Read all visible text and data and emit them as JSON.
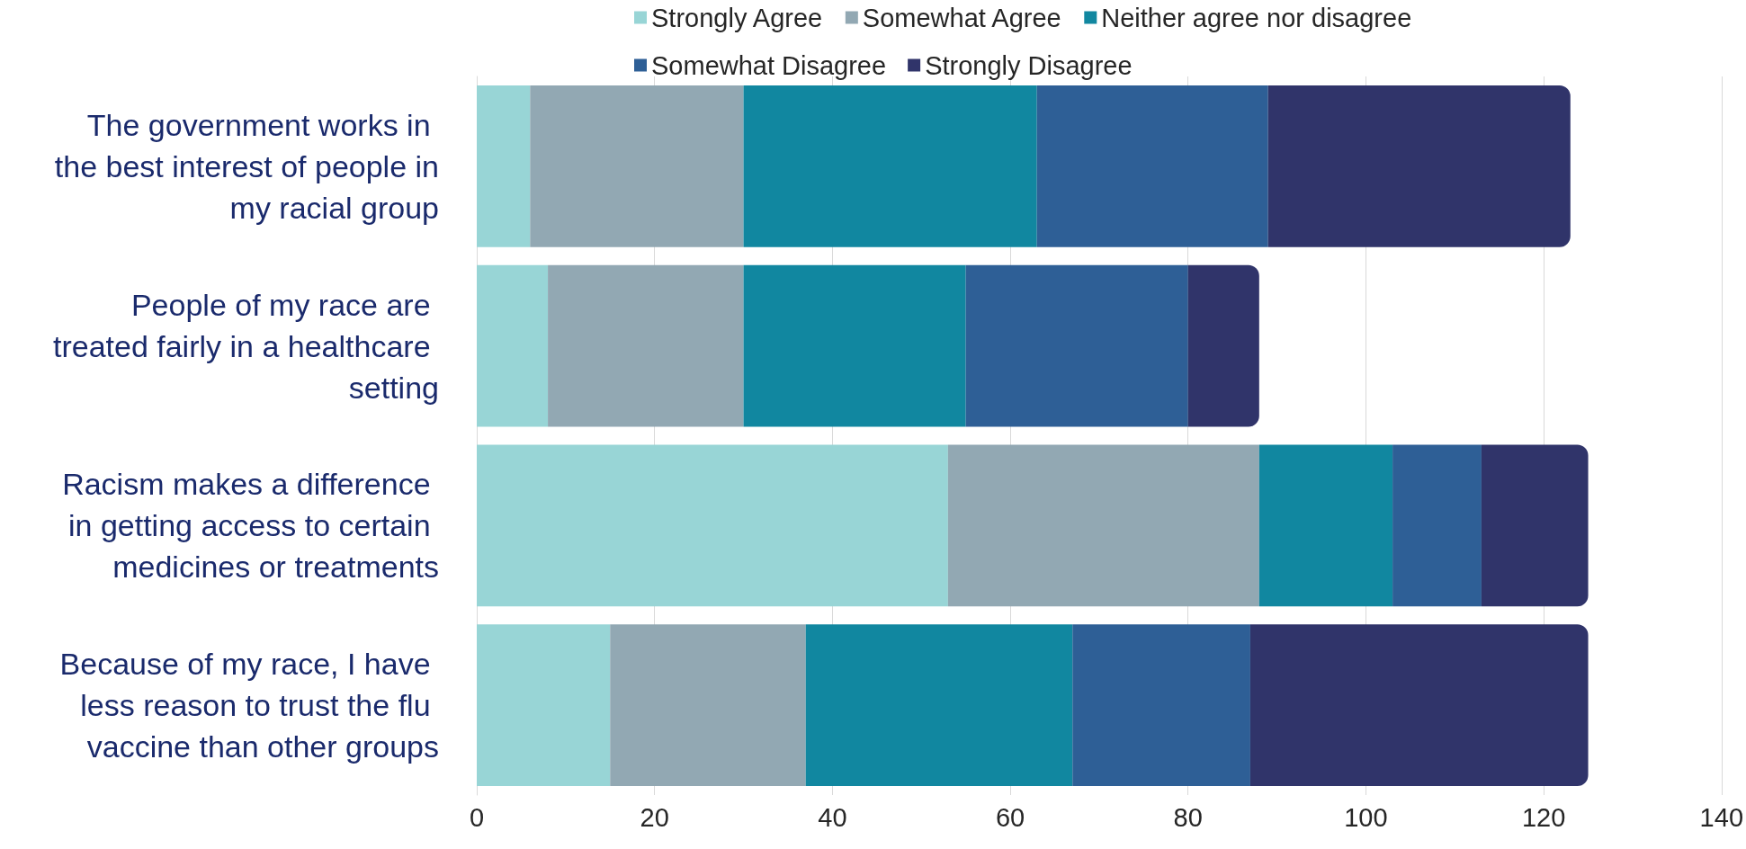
{
  "chart_data": {
    "type": "bar",
    "orientation": "horizontal",
    "stacked": true,
    "categories": [
      "The government works in the best interest of people in my racial group",
      "People of my race are treated fairly in a healthcare setting",
      "Racism makes a difference in getting access to certain medicines or treatments",
      "Because of my race, I have less reason to trust the flu vaccine than other groups"
    ],
    "series": [
      {
        "name": "Strongly Agree",
        "color": "#98d5d6",
        "values": [
          6,
          8,
          53,
          15
        ]
      },
      {
        "name": "Somewhat Agree",
        "color": "#92a8b3",
        "values": [
          24,
          22,
          35,
          22
        ]
      },
      {
        "name": "Neither agree nor disagree",
        "color": "#1187a0",
        "values": [
          33,
          25,
          15,
          30
        ]
      },
      {
        "name": "Somewhat Disagree",
        "color": "#2e5f96",
        "values": [
          26,
          25,
          10,
          20
        ]
      },
      {
        "name": "Strongly Disagree",
        "color": "#30346a",
        "values": [
          34,
          8,
          12,
          38
        ]
      }
    ],
    "xlim": [
      0,
      140
    ],
    "xticks": [
      0,
      20,
      40,
      60,
      80,
      100,
      120,
      140
    ],
    "grid": "x",
    "legend": "top"
  }
}
